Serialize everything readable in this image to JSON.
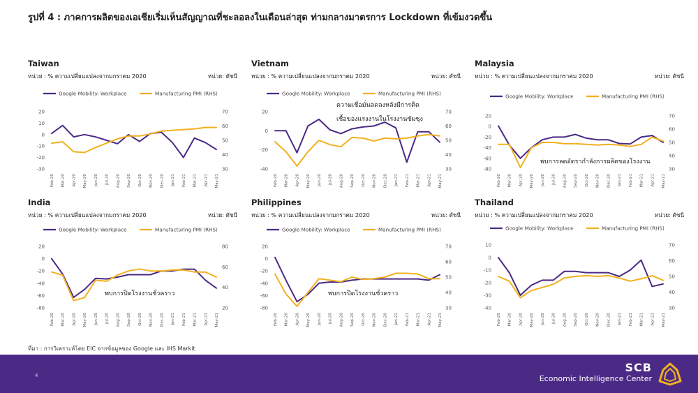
{
  "title": "รูปที่ 4 : ภาคการผลิตของเอเชียเริ่มเห็นสัญญาณที่ชะลอลงในเดือนล่าสุด ท่ามกลางมาตรการ Lockdown ที่เข้มงวดขึ้น",
  "unit_left": "หน่วย : % ความเปลี่ยนแปลงจากมกราคม 2020",
  "unit_right": "หน่วย: ดัชนี",
  "source": "ที่มา : การวิเคราะห์โดย EIC จากข้อมูลของ Google และ IHS Markit",
  "page_number": "4",
  "brand": {
    "name": "SCB",
    "subtitle": "Economic Intelligence Center"
  },
  "colors": {
    "mobility": "#4b2a85",
    "pmi": "#f2b01e",
    "footer": "#4b2a85"
  },
  "chart_data": [
    {
      "type": "line",
      "country": "Taiwan",
      "x": [
        "Feb-20",
        "Mar-20",
        "Apr-20",
        "May-20",
        "Jun-20",
        "Jul-20",
        "Aug-20",
        "Sep-20",
        "Oct-20",
        "Nov-20",
        "Dec-20",
        "Jan-21",
        "Feb-21",
        "Mar-21",
        "Apr-21",
        "May-21"
      ],
      "series": [
        {
          "name": "Google Mobility: Workplace",
          "axis": "left",
          "values": [
            1,
            8,
            -2,
            0,
            -2,
            -5,
            -8,
            0,
            -6,
            1,
            2,
            -7,
            -20,
            -3,
            -7,
            -13
          ]
        },
        {
          "name": "Manufacturing PMI (RHS)",
          "axis": "right",
          "values": [
            48,
            49,
            42,
            41.5,
            45,
            48,
            51,
            53,
            53,
            54.5,
            56.5,
            57,
            57.5,
            58,
            59,
            59
          ]
        }
      ],
      "ylim_left": [
        -30,
        20
      ],
      "yticks_left": [
        -30,
        -20,
        -10,
        0,
        10,
        20
      ],
      "ylim_right": [
        30,
        70
      ],
      "yticks_right": [
        30,
        40,
        50,
        60,
        70
      ],
      "annotation": ""
    },
    {
      "type": "line",
      "country": "Vietnam",
      "x": [
        "Feb-20",
        "Mar-20",
        "Apr-20",
        "May-20",
        "Jun-20",
        "Jul-20",
        "Aug-20",
        "Sep-20",
        "Oct-20",
        "Nov-20",
        "Dec-20",
        "Jan-21",
        "Feb-21",
        "Mar-21",
        "Apr-21",
        "May-21"
      ],
      "series": [
        {
          "name": "Google Mobility: Workplace",
          "axis": "left",
          "values": [
            0,
            0,
            -23,
            5,
            12,
            1,
            -3,
            2,
            4,
            5,
            9,
            3,
            -33,
            -1,
            -1,
            -12
          ]
        },
        {
          "name": "Manufacturing PMI (RHS)",
          "axis": "right",
          "values": [
            49,
            42,
            32,
            42,
            50,
            47,
            45.5,
            52,
            51.5,
            49.5,
            51.5,
            51,
            51.5,
            53,
            54,
            53
          ]
        }
      ],
      "ylim_left": [
        -40,
        20
      ],
      "yticks_left": [
        -40,
        -20,
        0,
        20
      ],
      "ylim_right": [
        30,
        70
      ],
      "yticks_right": [
        30,
        40,
        50,
        60,
        70
      ],
      "annotation": [
        "ความเชื่อมั่นลดลงหลังมีการติด",
        "เชื้อของแรงงานในโรงงานซัมซุง"
      ]
    },
    {
      "type": "line",
      "country": "Malaysia",
      "x": [
        "Feb-20",
        "Mar-20",
        "Apr-20",
        "May-20",
        "Jun-20",
        "Jul-20",
        "Aug-20",
        "Sep-20",
        "Oct-20",
        "Nov-20",
        "Dec-20",
        "Jan-21",
        "Feb-21",
        "Mar-21",
        "Apr-21",
        "May-21"
      ],
      "series": [
        {
          "name": "Google Mobility: Workplace",
          "axis": "left",
          "values": [
            1,
            -35,
            -60,
            -40,
            -25,
            -20,
            -20,
            -15,
            -22,
            -25,
            -25,
            -32,
            -33,
            -20,
            -17,
            -30
          ]
        },
        {
          "name": "Manufacturing PMI (RHS)",
          "axis": "right",
          "values": [
            48.5,
            48.5,
            31,
            46,
            50,
            50,
            49,
            49,
            48.5,
            48,
            48.5,
            48,
            47,
            48.5,
            54,
            51
          ]
        }
      ],
      "ylim_left": [
        -80,
        20
      ],
      "yticks_left": [
        -80,
        -60,
        -40,
        -20,
        0,
        20
      ],
      "ylim_right": [
        30,
        70
      ],
      "yticks_right": [
        30,
        40,
        50,
        60,
        70
      ],
      "annotation": [
        "พบการลดอัตรากำลังการผลิตของโรงงาน"
      ]
    },
    {
      "type": "line",
      "country": "India",
      "x": [
        "Feb-20",
        "Mar-20",
        "Apr-20",
        "May-20",
        "Jun-20",
        "Jul-20",
        "Aug-20",
        "Sep-20",
        "Oct-20",
        "Nov-20",
        "Dec-20",
        "Jan-21",
        "Feb-21",
        "Mar-21",
        "Apr-21",
        "May-21"
      ],
      "series": [
        {
          "name": "Google Mobility: Workplace",
          "axis": "left",
          "values": [
            0,
            -25,
            -63,
            -50,
            -32,
            -33,
            -30,
            -26,
            -26,
            -26,
            -20,
            -20,
            -17,
            -17,
            -35,
            -48
          ]
        },
        {
          "name": "Manufacturing PMI (RHS)",
          "axis": "right",
          "values": [
            55,
            52,
            27,
            30,
            47,
            46,
            52,
            56,
            58,
            56,
            56,
            57,
            57,
            55,
            55,
            50
          ]
        }
      ],
      "ylim_left": [
        -80,
        20
      ],
      "yticks_left": [
        -80,
        -60,
        -40,
        -20,
        0,
        20
      ],
      "ylim_right": [
        20,
        80
      ],
      "yticks_right": [
        20,
        40,
        60,
        80
      ],
      "annotation": [
        "พบการปิดโรงงานชั่วคราว"
      ]
    },
    {
      "type": "line",
      "country": "Philippines",
      "x": [
        "Feb-20",
        "Mar-20",
        "Apr-20",
        "May-20",
        "Jun-20",
        "Jul-20",
        "Aug-20",
        "Sep-20",
        "Oct-20",
        "Nov-20",
        "Dec-20",
        "Jan-21",
        "Feb-21",
        "Mar-21",
        "Apr-21",
        "May-21"
      ],
      "series": [
        {
          "name": "Google Mobility: Workplace",
          "axis": "left",
          "values": [
            2,
            -35,
            -70,
            -58,
            -40,
            -38,
            -38,
            -35,
            -33,
            -33,
            -33,
            -33,
            -33,
            -33,
            -35,
            -26
          ]
        },
        {
          "name": "Manufacturing PMI (RHS)",
          "axis": "right",
          "values": [
            52,
            39,
            31,
            40,
            49,
            48,
            47,
            50,
            48.5,
            49,
            50,
            52.5,
            52.5,
            52,
            49,
            49
          ]
        }
      ],
      "ylim_left": [
        -80,
        20
      ],
      "yticks_left": [
        -80,
        -60,
        -40,
        -20,
        0,
        20
      ],
      "ylim_right": [
        30,
        70
      ],
      "yticks_right": [
        30,
        40,
        50,
        60,
        70
      ],
      "annotation": [
        "พบการปิดโรงงานชั่วคราว"
      ]
    },
    {
      "type": "line",
      "country": "Thailand",
      "x": [
        "Feb-20",
        "Mar-20",
        "Apr-20",
        "May-20",
        "Jun-20",
        "Jul-20",
        "Aug-20",
        "Sep-20",
        "Oct-20",
        "Nov-20",
        "Dec-20",
        "Jan-21",
        "Feb-21",
        "Mar-21",
        "Apr-21",
        "May-21"
      ],
      "series": [
        {
          "name": "Google Mobility: Workplace",
          "axis": "left",
          "values": [
            0,
            -12,
            -30,
            -22,
            -18,
            -18,
            -11,
            -11,
            -12,
            -12,
            -12,
            -15,
            -10,
            -2,
            -23,
            -21
          ]
        },
        {
          "name": "Manufacturing PMI (RHS)",
          "axis": "right",
          "values": [
            50,
            47,
            36.5,
            41,
            43,
            45,
            49,
            50,
            50.5,
            50,
            50.5,
            49,
            47,
            48.5,
            50.5,
            47.5
          ]
        }
      ],
      "ylim_left": [
        -40,
        10
      ],
      "yticks_left": [
        -40,
        -30,
        -20,
        -10,
        0,
        10
      ],
      "ylim_right": [
        30,
        70
      ],
      "yticks_right": [
        30,
        40,
        50,
        60,
        70
      ],
      "annotation": ""
    }
  ]
}
